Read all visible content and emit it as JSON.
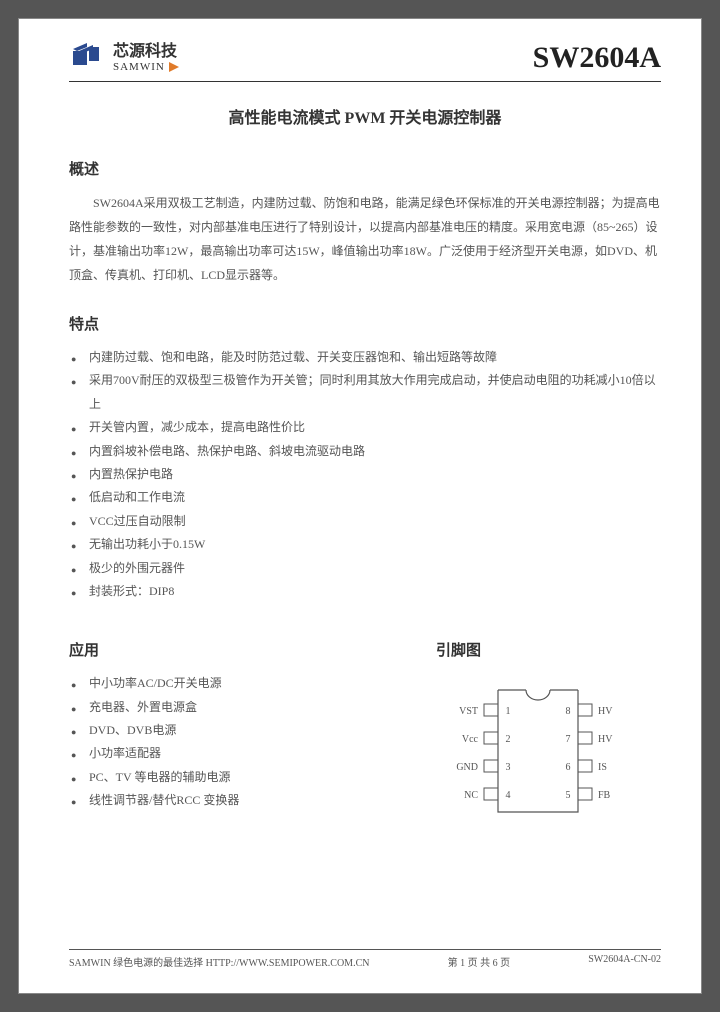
{
  "header": {
    "logo_cn": "芯源科技",
    "logo_en": "SAMWIN",
    "part_number": "SW2604A",
    "logo_colors": {
      "blue": "#2b4a8f",
      "orange": "#e07b2a"
    }
  },
  "title": "高性能电流模式 PWM 开关电源控制器",
  "sections": {
    "overview_h": "概述",
    "overview_p": "SW2604A采用双极工艺制造，内建防过载、防饱和电路，能满足绿色环保标准的开关电源控制器；为提高电路性能参数的一致性，对内部基准电压进行了特别设计，以提高内部基准电压的精度。采用宽电源（85~265）设计，基准输出功率12W，最高输出功率可达15W，峰值输出功率18W。广泛使用于经济型开关电源，如DVD、机顶盒、传真机、打印机、LCD显示器等。",
    "features_h": "特点",
    "features": [
      "内建防过载、饱和电路，能及时防范过载、开关变压器饱和、输出短路等故障",
      "采用700V耐压的双极型三极管作为开关管；同时利用其放大作用完成启动，并使启动电阻的功耗减小10倍以上",
      "开关管内置，减少成本，提高电路性价比",
      "内置斜坡补偿电路、热保护电路、斜坡电流驱动电路",
      "内置热保护电路",
      "低启动和工作电流",
      "VCC过压自动限制",
      "无输出功耗小于0.15W",
      "极少的外围元器件",
      "封装形式：DIP8"
    ],
    "applications_h": "应用",
    "applications": [
      "中小功率AC/DC开关电源",
      "充电器、外置电源盒",
      "DVD、DVB电源",
      "小功率适配器",
      "PC、TV 等电器的辅助电源",
      "线性调节器/替代RCC 变换器"
    ],
    "pinout_h": "引脚图"
  },
  "pinout": {
    "left_pins": [
      {
        "n": "1",
        "lbl": "VST"
      },
      {
        "n": "2",
        "lbl": "Vcc"
      },
      {
        "n": "3",
        "lbl": "GND"
      },
      {
        "n": "4",
        "lbl": "NC"
      }
    ],
    "right_pins": [
      {
        "n": "8",
        "lbl": "HV"
      },
      {
        "n": "7",
        "lbl": "HV"
      },
      {
        "n": "6",
        "lbl": "IS"
      },
      {
        "n": "5",
        "lbl": "FB"
      }
    ],
    "stroke": "#555555",
    "text_color": "#555555",
    "font_size": 10
  },
  "footer": {
    "left": "SAMWIN  绿色电源的最佳选择  HTTP://WWW.SEMIPOWER.COM.CN",
    "center": "第 1 页  共 6 页",
    "right": "SW2604A-CN-02"
  }
}
